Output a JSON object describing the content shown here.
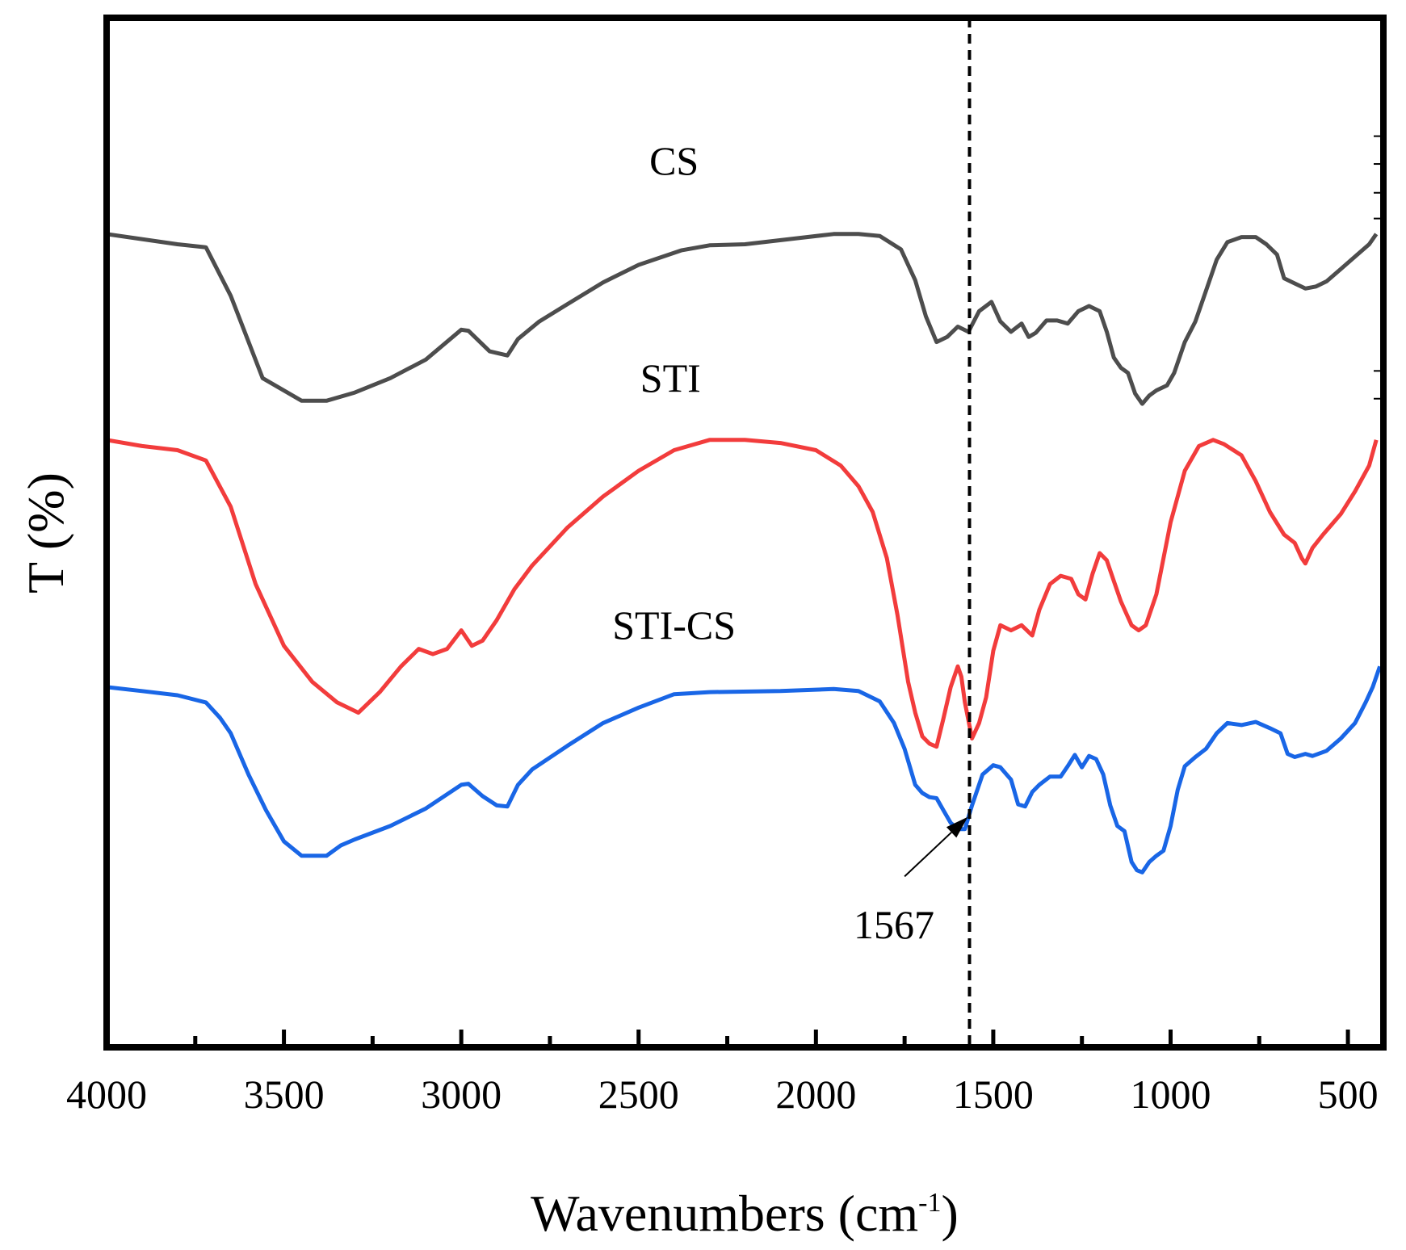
{
  "chart_data": {
    "type": "line",
    "title": "",
    "xlabel": "Wavenumbers",
    "xlabel_unit_base": "(cm",
    "xlabel_unit_sup": "-1",
    "xlabel_unit_close": ")",
    "ylabel": "T (%)",
    "xlim": [
      4000,
      400
    ],
    "ylim": [
      0,
      100
    ],
    "x_ticks": [
      4000,
      3500,
      3000,
      2500,
      2000,
      1500,
      1000,
      500
    ],
    "x_tick_labels": [
      "4000",
      "3500",
      "3000",
      "2500",
      "2000",
      "1500",
      "1000",
      "500"
    ],
    "grid": false,
    "legend": "none",
    "series": [
      {
        "name": "CS",
        "color": "#4d4d4d",
        "points": [
          [
            4000,
            79
          ],
          [
            3800,
            78
          ],
          [
            3720,
            77.7
          ],
          [
            3650,
            73
          ],
          [
            3560,
            65
          ],
          [
            3450,
            62.8
          ],
          [
            3380,
            62.8
          ],
          [
            3300,
            63.6
          ],
          [
            3200,
            65
          ],
          [
            3100,
            66.8
          ],
          [
            3000,
            69.7
          ],
          [
            2980,
            69.6
          ],
          [
            2920,
            67.6
          ],
          [
            2870,
            67.2
          ],
          [
            2840,
            68.8
          ],
          [
            2780,
            70.5
          ],
          [
            2700,
            72.2
          ],
          [
            2600,
            74.3
          ],
          [
            2500,
            76
          ],
          [
            2380,
            77.4
          ],
          [
            2300,
            77.9
          ],
          [
            2200,
            78
          ],
          [
            2050,
            78.6
          ],
          [
            1950,
            79
          ],
          [
            1880,
            79
          ],
          [
            1820,
            78.8
          ],
          [
            1760,
            77.5
          ],
          [
            1720,
            74.5
          ],
          [
            1690,
            71
          ],
          [
            1660,
            68.5
          ],
          [
            1630,
            69
          ],
          [
            1600,
            70
          ],
          [
            1570,
            69.5
          ],
          [
            1540,
            71.5
          ],
          [
            1505,
            72.4
          ],
          [
            1480,
            70.5
          ],
          [
            1450,
            69.5
          ],
          [
            1420,
            70.3
          ],
          [
            1400,
            69
          ],
          [
            1380,
            69.4
          ],
          [
            1350,
            70.6
          ],
          [
            1320,
            70.6
          ],
          [
            1290,
            70.3
          ],
          [
            1260,
            71.5
          ],
          [
            1230,
            72
          ],
          [
            1200,
            71.5
          ],
          [
            1180,
            69.5
          ],
          [
            1160,
            67
          ],
          [
            1140,
            66
          ],
          [
            1120,
            65.5
          ],
          [
            1100,
            63.5
          ],
          [
            1080,
            62.5
          ],
          [
            1060,
            63.3
          ],
          [
            1040,
            63.8
          ],
          [
            1010,
            64.3
          ],
          [
            990,
            65.5
          ],
          [
            960,
            68.5
          ],
          [
            930,
            70.5
          ],
          [
            900,
            73.5
          ],
          [
            870,
            76.5
          ],
          [
            840,
            78.2
          ],
          [
            800,
            78.7
          ],
          [
            760,
            78.7
          ],
          [
            730,
            78
          ],
          [
            700,
            77
          ],
          [
            680,
            74.7
          ],
          [
            650,
            74.2
          ],
          [
            620,
            73.7
          ],
          [
            590,
            73.9
          ],
          [
            560,
            74.4
          ],
          [
            520,
            75.6
          ],
          [
            480,
            76.8
          ],
          [
            440,
            78
          ],
          [
            420,
            79
          ]
        ]
      },
      {
        "name": "STI",
        "color": "#f23c3c",
        "points": [
          [
            4000,
            59
          ],
          [
            3900,
            58.4
          ],
          [
            3800,
            58
          ],
          [
            3720,
            57
          ],
          [
            3650,
            52.5
          ],
          [
            3580,
            45
          ],
          [
            3500,
            39
          ],
          [
            3420,
            35.5
          ],
          [
            3350,
            33.5
          ],
          [
            3290,
            32.5
          ],
          [
            3230,
            34.5
          ],
          [
            3170,
            37
          ],
          [
            3120,
            38.7
          ],
          [
            3080,
            38.2
          ],
          [
            3040,
            38.7
          ],
          [
            3000,
            40.5
          ],
          [
            2970,
            39
          ],
          [
            2940,
            39.5
          ],
          [
            2900,
            41.5
          ],
          [
            2850,
            44.5
          ],
          [
            2800,
            46.8
          ],
          [
            2700,
            50.5
          ],
          [
            2600,
            53.5
          ],
          [
            2500,
            56
          ],
          [
            2400,
            58
          ],
          [
            2300,
            59
          ],
          [
            2200,
            59
          ],
          [
            2100,
            58.7
          ],
          [
            2000,
            58
          ],
          [
            1930,
            56.5
          ],
          [
            1880,
            54.5
          ],
          [
            1840,
            52
          ],
          [
            1800,
            47.5
          ],
          [
            1770,
            42
          ],
          [
            1740,
            35.5
          ],
          [
            1720,
            32.5
          ],
          [
            1700,
            30.2
          ],
          [
            1680,
            29.5
          ],
          [
            1660,
            29.2
          ],
          [
            1640,
            32
          ],
          [
            1620,
            35
          ],
          [
            1600,
            37
          ],
          [
            1590,
            36
          ],
          [
            1580,
            33.5
          ],
          [
            1560,
            30
          ],
          [
            1540,
            31.5
          ],
          [
            1520,
            34
          ],
          [
            1500,
            38.5
          ],
          [
            1480,
            41
          ],
          [
            1450,
            40.5
          ],
          [
            1420,
            41
          ],
          [
            1390,
            40
          ],
          [
            1370,
            42.5
          ],
          [
            1340,
            45
          ],
          [
            1310,
            45.8
          ],
          [
            1280,
            45.5
          ],
          [
            1260,
            44
          ],
          [
            1240,
            43.5
          ],
          [
            1220,
            46
          ],
          [
            1200,
            48
          ],
          [
            1180,
            47.3
          ],
          [
            1160,
            45.3
          ],
          [
            1140,
            43.3
          ],
          [
            1110,
            41
          ],
          [
            1090,
            40.5
          ],
          [
            1070,
            41
          ],
          [
            1040,
            44
          ],
          [
            1000,
            51
          ],
          [
            960,
            56
          ],
          [
            920,
            58.4
          ],
          [
            880,
            59
          ],
          [
            850,
            58.6
          ],
          [
            800,
            57.5
          ],
          [
            760,
            55
          ],
          [
            720,
            52
          ],
          [
            680,
            49.8
          ],
          [
            650,
            49
          ],
          [
            630,
            47.5
          ],
          [
            620,
            47
          ],
          [
            600,
            48.5
          ],
          [
            570,
            49.8
          ],
          [
            520,
            51.8
          ],
          [
            480,
            54
          ],
          [
            440,
            56.5
          ],
          [
            420,
            59
          ]
        ]
      },
      {
        "name": "STI-CS",
        "color": "#1966e6",
        "points": [
          [
            4000,
            35
          ],
          [
            3900,
            34.6
          ],
          [
            3800,
            34.2
          ],
          [
            3720,
            33.5
          ],
          [
            3680,
            32
          ],
          [
            3650,
            30.5
          ],
          [
            3600,
            26.5
          ],
          [
            3550,
            23
          ],
          [
            3500,
            20
          ],
          [
            3450,
            18.6
          ],
          [
            3380,
            18.6
          ],
          [
            3340,
            19.6
          ],
          [
            3300,
            20.2
          ],
          [
            3200,
            21.5
          ],
          [
            3100,
            23.2
          ],
          [
            3000,
            25.5
          ],
          [
            2980,
            25.6
          ],
          [
            2940,
            24.4
          ],
          [
            2900,
            23.5
          ],
          [
            2870,
            23.4
          ],
          [
            2840,
            25.5
          ],
          [
            2800,
            27
          ],
          [
            2700,
            29.3
          ],
          [
            2600,
            31.5
          ],
          [
            2500,
            33
          ],
          [
            2400,
            34.3
          ],
          [
            2300,
            34.5
          ],
          [
            2100,
            34.6
          ],
          [
            1950,
            34.8
          ],
          [
            1880,
            34.6
          ],
          [
            1820,
            33.6
          ],
          [
            1780,
            31.5
          ],
          [
            1750,
            29
          ],
          [
            1720,
            25.5
          ],
          [
            1700,
            24.7
          ],
          [
            1680,
            24.3
          ],
          [
            1660,
            24.2
          ],
          [
            1640,
            23
          ],
          [
            1620,
            21.8
          ],
          [
            1600,
            21.2
          ],
          [
            1580,
            21.2
          ],
          [
            1560,
            23.5
          ],
          [
            1530,
            26.5
          ],
          [
            1500,
            27.4
          ],
          [
            1480,
            27.2
          ],
          [
            1450,
            26
          ],
          [
            1430,
            23.6
          ],
          [
            1410,
            23.4
          ],
          [
            1390,
            24.8
          ],
          [
            1370,
            25.5
          ],
          [
            1340,
            26.3
          ],
          [
            1310,
            26.3
          ],
          [
            1290,
            27.3
          ],
          [
            1270,
            28.4
          ],
          [
            1250,
            27.2
          ],
          [
            1230,
            28.3
          ],
          [
            1210,
            28
          ],
          [
            1190,
            26.5
          ],
          [
            1170,
            23.5
          ],
          [
            1150,
            21.5
          ],
          [
            1130,
            21
          ],
          [
            1110,
            18
          ],
          [
            1095,
            17.2
          ],
          [
            1080,
            17
          ],
          [
            1060,
            18
          ],
          [
            1040,
            18.6
          ],
          [
            1020,
            19.1
          ],
          [
            1000,
            21.5
          ],
          [
            980,
            25
          ],
          [
            960,
            27.3
          ],
          [
            930,
            28.2
          ],
          [
            900,
            29
          ],
          [
            870,
            30.5
          ],
          [
            840,
            31.5
          ],
          [
            800,
            31.3
          ],
          [
            760,
            31.6
          ],
          [
            720,
            31
          ],
          [
            690,
            30.5
          ],
          [
            670,
            28.5
          ],
          [
            650,
            28.2
          ],
          [
            620,
            28.5
          ],
          [
            600,
            28.3
          ],
          [
            560,
            28.8
          ],
          [
            520,
            30
          ],
          [
            480,
            31.5
          ],
          [
            450,
            33.5
          ],
          [
            430,
            35
          ],
          [
            410,
            37
          ]
        ]
      }
    ],
    "series_labels": [
      "CS",
      "STI",
      "STI-CS"
    ],
    "reference_line": {
      "x": 1567,
      "style": "dashed"
    },
    "annotations": [
      {
        "text": "1567",
        "x": 1567,
        "series": "STI-CS"
      }
    ]
  }
}
